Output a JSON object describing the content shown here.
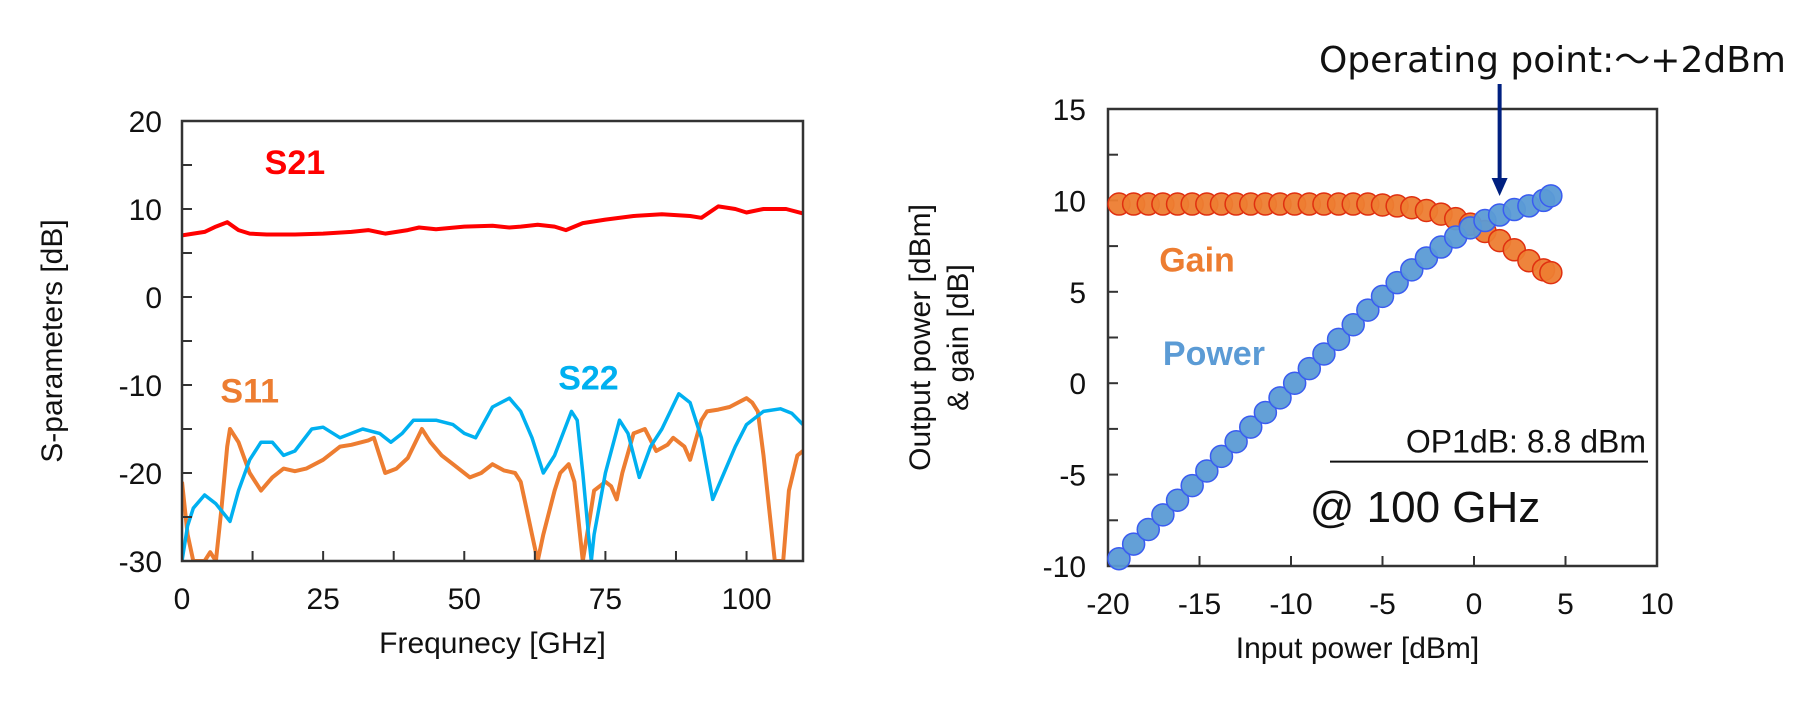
{
  "chart_data": [
    {
      "type": "line",
      "title": "",
      "xlabel": "Frequnecy [GHz]",
      "ylabel": "S-parameters [dB]",
      "xlim": [
        0,
        110
      ],
      "ylim": [
        -30,
        20
      ],
      "xticks": [
        0,
        25,
        50,
        75,
        100
      ],
      "xtick_labels": [
        "0",
        "25",
        "50",
        "75",
        "100"
      ],
      "x_minor_step": 12.5,
      "yticks": [
        -30,
        -20,
        -10,
        0,
        10,
        20
      ],
      "ytick_labels": [
        "-30",
        "-20",
        "-10",
        "0",
        "10",
        "20"
      ],
      "y_minor_step": 5,
      "grid": false,
      "legend": "inline-labels",
      "series": [
        {
          "name": "S21",
          "color": "#ff0000",
          "style": "solid",
          "label_pos": [
            20,
            14
          ],
          "x": [
            0,
            2,
            4,
            6,
            8,
            10,
            12,
            15,
            20,
            25,
            30,
            33,
            36,
            40,
            42,
            45,
            50,
            55,
            58,
            60,
            63,
            66,
            68,
            71,
            75,
            80,
            85,
            90,
            92,
            95,
            98,
            100,
            103,
            107,
            110
          ],
          "y": [
            7,
            7.2,
            7.4,
            8,
            8.5,
            7.6,
            7.2,
            7.1,
            7.1,
            7.2,
            7.4,
            7.6,
            7.2,
            7.6,
            7.9,
            7.7,
            8,
            8.1,
            7.9,
            8,
            8.2,
            8,
            7.6,
            8.4,
            8.8,
            9.2,
            9.4,
            9.2,
            9,
            10.3,
            10,
            9.6,
            10,
            10,
            9.5
          ]
        },
        {
          "name": "S11",
          "color": "#ed7d31",
          "style": "solid-dashed-at-dips",
          "label_pos": [
            12,
            -12
          ],
          "x": [
            0,
            1,
            2,
            3,
            4,
            5,
            6,
            7,
            8,
            8.5,
            10,
            12,
            14,
            16,
            18,
            20,
            22,
            25,
            28,
            30,
            33,
            34,
            36,
            38,
            40,
            42.5,
            44,
            46,
            48,
            51,
            53,
            55,
            57,
            59,
            60,
            61,
            62,
            63,
            64,
            66,
            67,
            68.5,
            69.5,
            70,
            71,
            72,
            73,
            75,
            76,
            77,
            78,
            80,
            82,
            84,
            86,
            87,
            89,
            90,
            92,
            93,
            95,
            97,
            100,
            101,
            102,
            103,
            104,
            105,
            106,
            106.5,
            107.5,
            109,
            110
          ],
          "y": [
            -21,
            -27,
            -30,
            -30,
            -30,
            -29,
            -30,
            -24,
            -17,
            -15,
            -16.5,
            -20,
            -22,
            -20.5,
            -19.5,
            -19.8,
            -19.5,
            -18.5,
            -17,
            -16.8,
            -16.3,
            -16,
            -20,
            -19.5,
            -18.3,
            -15,
            -16.5,
            -18,
            -19,
            -20.5,
            -20,
            -19,
            -19.7,
            -20,
            -21,
            -24,
            -27,
            -30,
            -27,
            -22,
            -20,
            -19,
            -21,
            -24,
            -30,
            -26,
            -22,
            -21,
            -21.5,
            -23,
            -20,
            -15.5,
            -15,
            -17.5,
            -16.8,
            -16,
            -17,
            -18.5,
            -14,
            -13,
            -12.8,
            -12.5,
            -11.5,
            -12,
            -13,
            -18,
            -24,
            -30,
            -30,
            -30,
            -22,
            -18,
            -17.5
          ]
        },
        {
          "name": "S22",
          "color": "#00b0f0",
          "style": "solid-dotted",
          "label_pos": [
            72,
            -10.5
          ],
          "x": [
            0,
            1,
            2,
            4,
            6,
            8.5,
            10,
            12,
            14,
            16,
            18,
            20,
            23,
            25,
            28,
            32,
            35,
            37,
            39,
            41,
            45,
            48,
            50,
            52,
            55,
            58,
            60,
            62,
            64,
            66,
            69,
            70,
            71,
            72,
            72.5,
            73,
            75,
            77.5,
            79,
            81,
            83,
            85,
            88,
            90,
            92,
            94,
            96,
            98,
            100,
            103,
            106,
            108,
            110
          ],
          "y": [
            -30,
            -26,
            -24,
            -22.5,
            -23.5,
            -25.5,
            -22,
            -18.5,
            -16.5,
            -16.5,
            -18,
            -17.5,
            -15,
            -14.8,
            -16,
            -15,
            -15.5,
            -16.5,
            -15.5,
            -14,
            -14,
            -14.5,
            -15.5,
            -16,
            -12.5,
            -11.5,
            -13,
            -16,
            -20,
            -18,
            -13,
            -14,
            -20,
            -27,
            -30,
            -27,
            -20,
            -14,
            -15.5,
            -20.5,
            -17,
            -15,
            -11,
            -12,
            -16,
            -23,
            -20,
            -17,
            -14.5,
            -13,
            -12.7,
            -13.2,
            -14.5
          ]
        }
      ]
    },
    {
      "type": "scatter",
      "title": "",
      "xlabel": "Input power [dBm]",
      "ylabel_line1": "Output power [dBm]",
      "ylabel_line2": "& gain [dB]",
      "xlim": [
        -20,
        10
      ],
      "ylim": [
        -10,
        15
      ],
      "xticks": [
        -20,
        -15,
        -10,
        -5,
        0,
        5,
        10
      ],
      "xtick_labels": [
        "-20",
        "-15",
        "-10",
        "-5",
        "0",
        "5",
        "10"
      ],
      "yticks": [
        -10,
        -5,
        0,
        5,
        10,
        15
      ],
      "ytick_labels": [
        "-10",
        "-5",
        "0",
        "5",
        "10",
        "15"
      ],
      "y_minor_step": 2.5,
      "grid": false,
      "legend": "inline-labels",
      "series": [
        {
          "name": "Gain",
          "color": "#ed7d31",
          "edge_color": "#e03010",
          "label_pos": [
            -17.2,
            6.1
          ],
          "x": [
            -19.4,
            -18.6,
            -17.8,
            -17.0,
            -16.2,
            -15.4,
            -14.6,
            -13.8,
            -13.0,
            -12.2,
            -11.4,
            -10.6,
            -9.8,
            -9.0,
            -8.2,
            -7.4,
            -6.6,
            -5.8,
            -5.0,
            -4.2,
            -3.4,
            -2.6,
            -1.8,
            -1.0,
            -0.2,
            0.6,
            1.4,
            2.2,
            3.0,
            3.8,
            4.2
          ],
          "y": [
            9.8,
            9.8,
            9.8,
            9.8,
            9.8,
            9.8,
            9.8,
            9.8,
            9.8,
            9.8,
            9.8,
            9.8,
            9.8,
            9.8,
            9.8,
            9.8,
            9.8,
            9.8,
            9.75,
            9.7,
            9.6,
            9.45,
            9.25,
            9.0,
            8.7,
            8.3,
            7.8,
            7.3,
            6.7,
            6.2,
            6.05
          ]
        },
        {
          "name": "Power",
          "color": "#5b9bd5",
          "edge_color": "#3a5cf0",
          "label_pos": [
            -17.0,
            1.0
          ],
          "x": [
            -19.4,
            -18.6,
            -17.8,
            -17.0,
            -16.2,
            -15.4,
            -14.6,
            -13.8,
            -13.0,
            -12.2,
            -11.4,
            -10.6,
            -9.8,
            -9.0,
            -8.2,
            -7.4,
            -6.6,
            -5.8,
            -5.0,
            -4.2,
            -3.4,
            -2.6,
            -1.8,
            -1.0,
            -0.2,
            0.6,
            1.4,
            2.2,
            3.0,
            3.8,
            4.2
          ],
          "y": [
            -9.6,
            -8.8,
            -8.0,
            -7.2,
            -6.4,
            -5.6,
            -4.8,
            -4.0,
            -3.2,
            -2.4,
            -1.6,
            -0.8,
            0.0,
            0.8,
            1.6,
            2.4,
            3.2,
            4.0,
            4.75,
            5.5,
            6.2,
            6.85,
            7.45,
            8.0,
            8.5,
            8.9,
            9.2,
            9.5,
            9.7,
            10.0,
            10.25
          ]
        }
      ],
      "annotations": {
        "operating_point_text": "Operating point:～+2dBm",
        "operating_point_x": 1.4,
        "op1db_text": "OP1dB: 8.8 dBm",
        "freq_text": "@ 100 GHz",
        "arrow_color": "#002080"
      }
    }
  ]
}
